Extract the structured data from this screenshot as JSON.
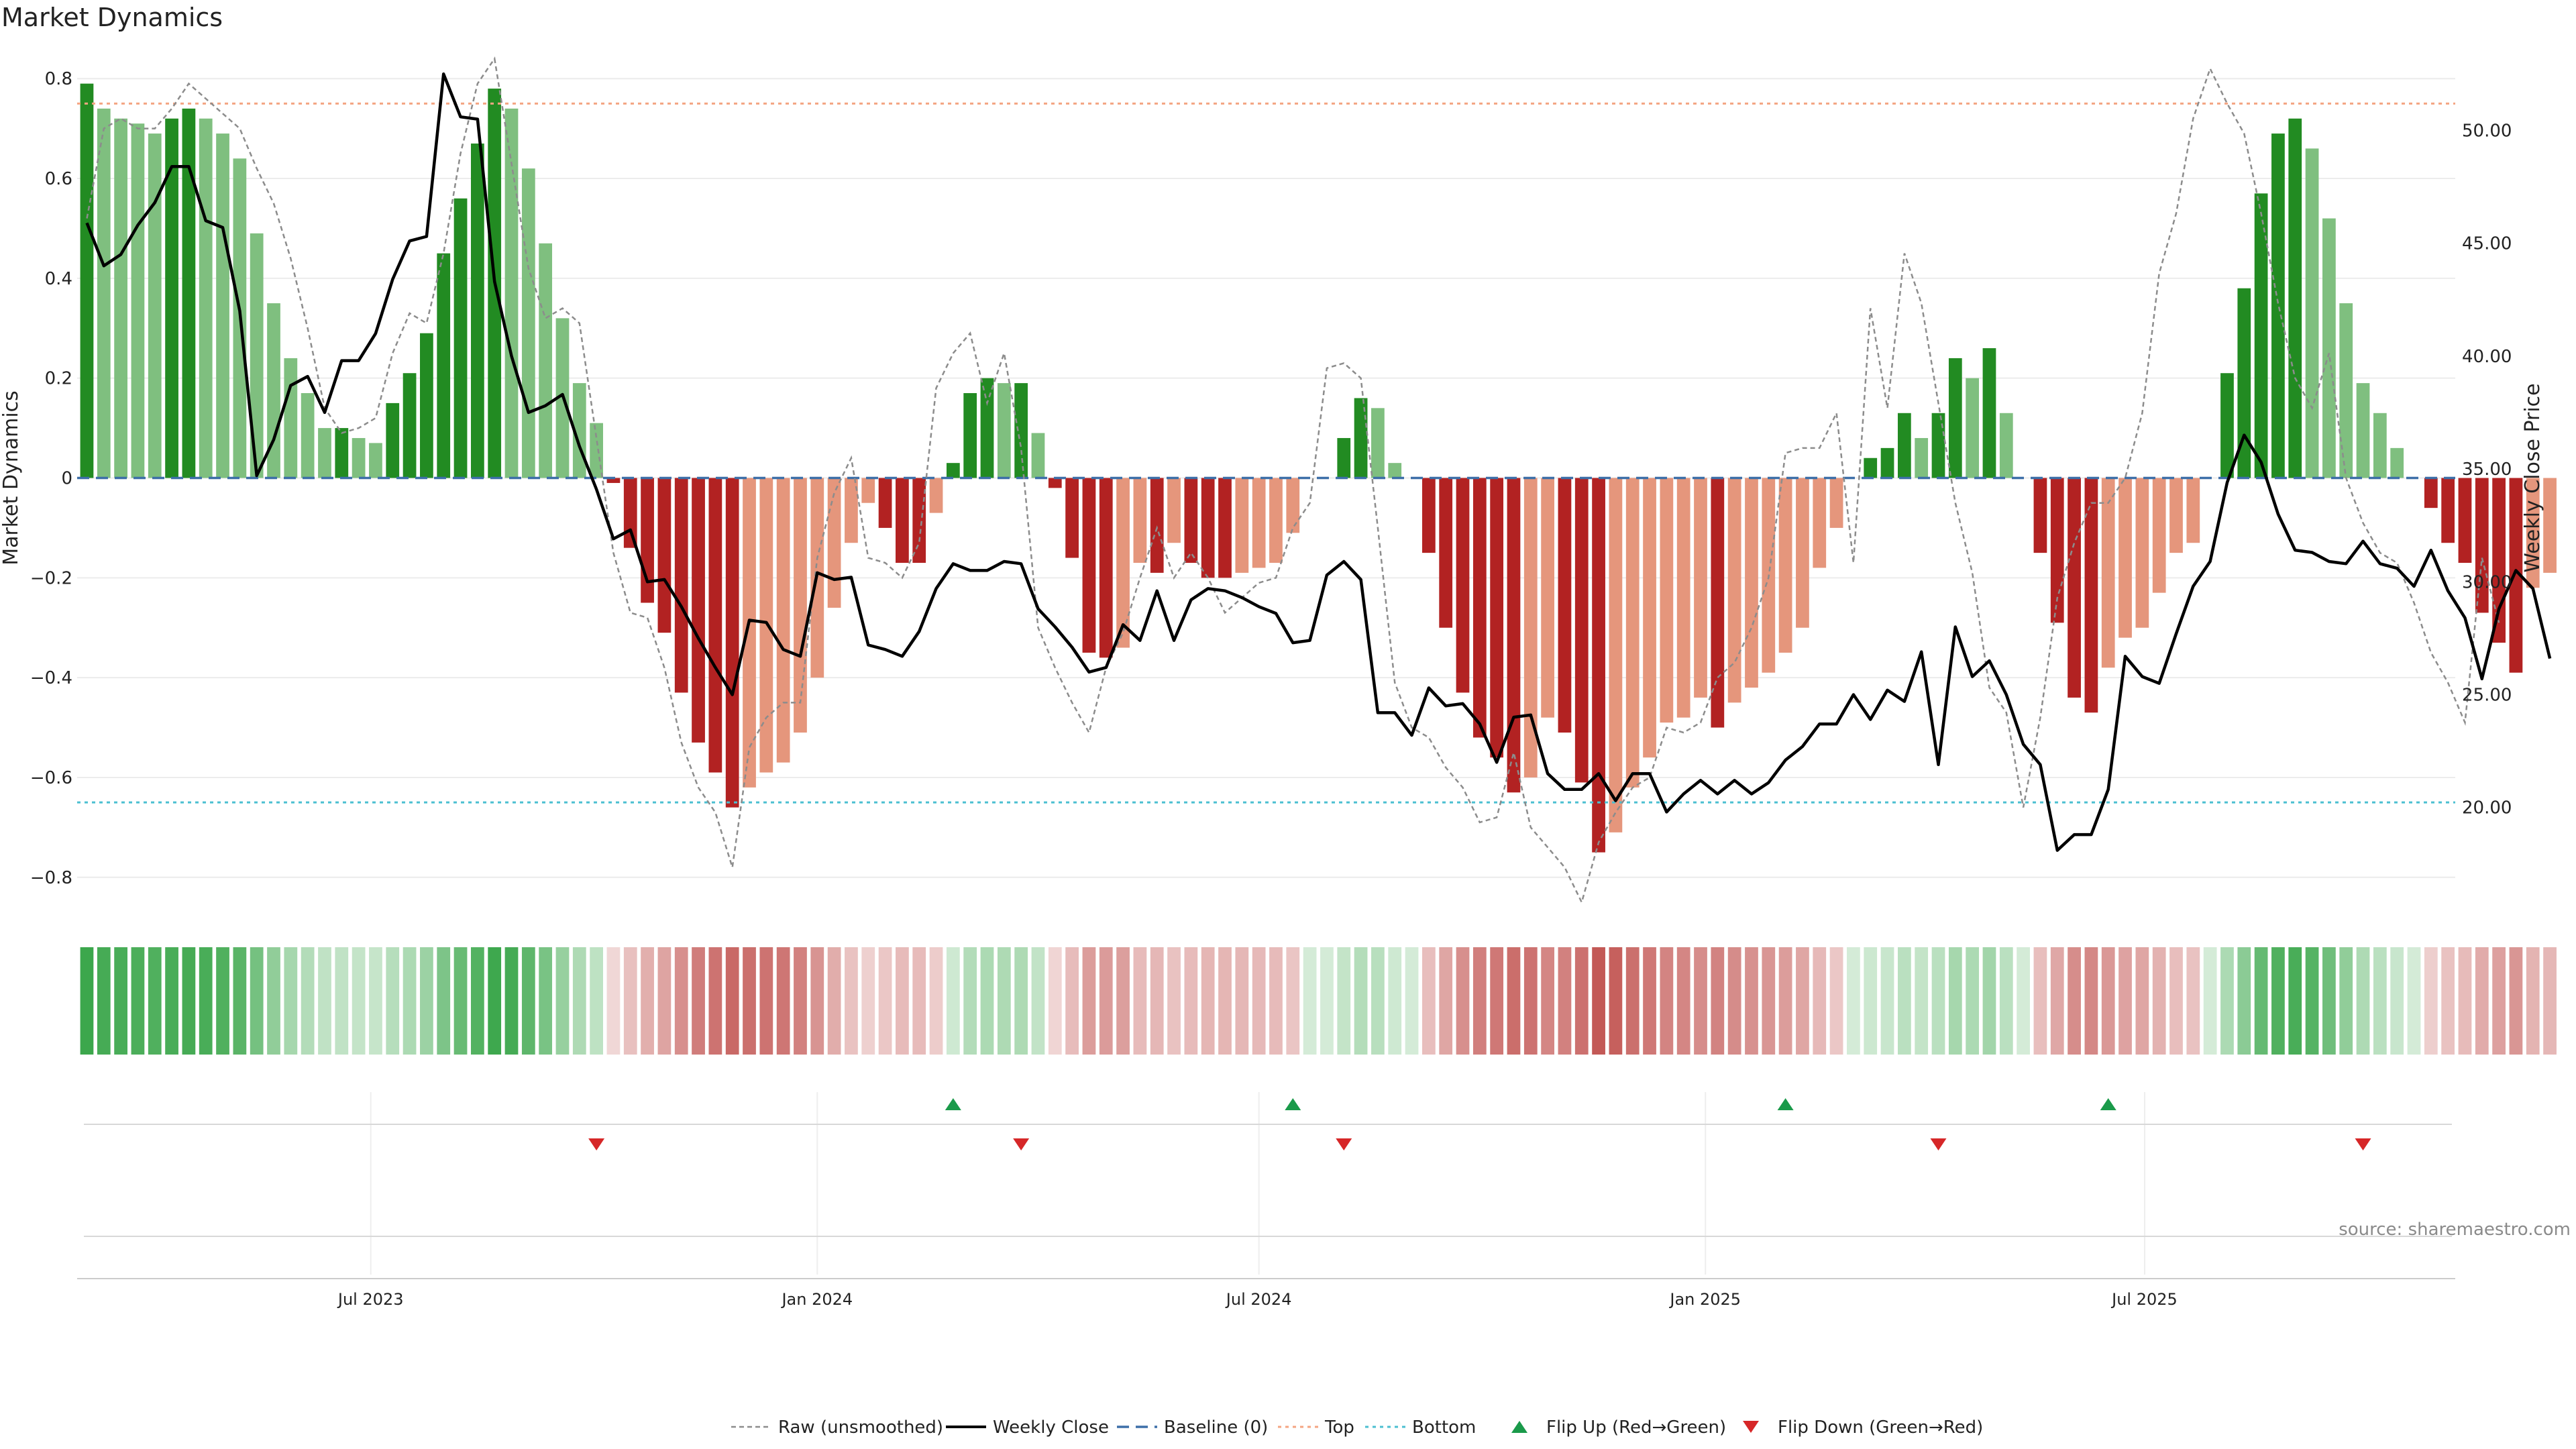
{
  "title": "Market Dynamics",
  "source": "source: sharemaestro.com",
  "colors": {
    "strong_pos": "#228b22",
    "weak_pos": "#7fbf7f",
    "strong_neg": "#b22222",
    "weak_neg": "#e5967c",
    "close": "#000000",
    "raw": "#8c8c8c",
    "baseline": "#3d6fa8",
    "top": "#f4a582",
    "bottom": "#4bbfd1",
    "flip_up": "#1a9a4a",
    "flip_down": "#d62728",
    "ribbon_pos": "#3aa64a",
    "ribbon_neg": "#c0504d"
  },
  "chart_data": {
    "type": "bar",
    "title": "Market Dynamics",
    "ylabel": "Market Dynamics",
    "y2label": "Weekly Close Price",
    "ylim": [
      -0.85,
      0.85
    ],
    "y2lim": [
      15.8,
      53.4
    ],
    "yticks": [
      -0.8,
      -0.6,
      -0.4,
      -0.2,
      0,
      0.2,
      0.4,
      0.6,
      0.8
    ],
    "ytick_labels": [
      "−0.8",
      "−0.6",
      "−0.4",
      "−0.2",
      "0",
      "0.2",
      "0.4",
      "0.6",
      "0.8"
    ],
    "y2ticks": [
      20,
      25,
      30,
      35,
      40,
      45,
      50
    ],
    "y2tick_labels": [
      "20.00",
      "25.00",
      "30.00",
      "35.00",
      "40.00",
      "45.00",
      "50.00"
    ],
    "xlim": [
      "2023-03-02",
      "2025-11-06"
    ],
    "xticks": [
      "2023-07-01",
      "2024-01-01",
      "2024-07-01",
      "2025-01-01",
      "2025-07-01"
    ],
    "xtick_labels": [
      "Jul 2023",
      "Jan 2024",
      "Jul 2024",
      "Jan 2025",
      "Jul 2025"
    ],
    "start_date": "2023-03-06",
    "top_level": 0.75,
    "bottom_level": -0.65,
    "baseline": 0,
    "grid": true,
    "legend_position": "bottom",
    "legend": [
      "Raw (unsmoothed)",
      "Weekly Close",
      "Baseline (0)",
      "Top",
      "Bottom",
      "Flip Up (Red→Green)",
      "Flip Down (Green→Red)"
    ],
    "momentum": [
      0.79,
      0.74,
      0.72,
      0.71,
      0.69,
      0.72,
      0.74,
      0.72,
      0.69,
      0.64,
      0.49,
      0.35,
      0.24,
      0.17,
      0.1,
      0.1,
      0.08,
      0.07,
      0.15,
      0.21,
      0.29,
      0.45,
      0.56,
      0.67,
      0.78,
      0.74,
      0.62,
      0.47,
      0.32,
      0.19,
      0.11,
      -0.01,
      -0.14,
      -0.25,
      -0.31,
      -0.43,
      -0.53,
      -0.59,
      -0.66,
      -0.62,
      -0.59,
      -0.57,
      -0.51,
      -0.4,
      -0.26,
      -0.13,
      -0.05,
      -0.1,
      -0.17,
      -0.17,
      -0.07,
      0.03,
      0.17,
      0.2,
      0.19,
      0.19,
      0.09,
      -0.02,
      -0.16,
      -0.35,
      -0.36,
      -0.34,
      -0.17,
      -0.19,
      -0.13,
      -0.17,
      -0.2,
      -0.2,
      -0.19,
      -0.18,
      -0.17,
      -0.11,
      0.0,
      0.0,
      0.08,
      0.16,
      0.14,
      0.03,
      0.0,
      -0.15,
      -0.3,
      -0.43,
      -0.52,
      -0.56,
      -0.63,
      -0.6,
      -0.48,
      -0.51,
      -0.61,
      -0.75,
      -0.71,
      -0.62,
      -0.56,
      -0.49,
      -0.48,
      -0.44,
      -0.5,
      -0.45,
      -0.42,
      -0.39,
      -0.35,
      -0.3,
      -0.18,
      -0.1,
      0.0,
      0.04,
      0.06,
      0.13,
      0.08,
      0.13,
      0.24,
      0.2,
      0.26,
      0.13,
      0.0,
      -0.15,
      -0.29,
      -0.44,
      -0.47,
      -0.38,
      -0.32,
      -0.3,
      -0.23,
      -0.15,
      -0.13,
      0.0,
      0.21,
      0.38,
      0.57,
      0.69,
      0.72,
      0.66,
      0.52,
      0.35,
      0.19,
      0.13,
      0.06,
      0.0,
      -0.06,
      -0.13,
      -0.17,
      -0.27,
      -0.33,
      -0.39,
      -0.22,
      -0.19
    ],
    "weekly_close": [
      45.9,
      44.0,
      44.5,
      45.8,
      46.8,
      48.4,
      48.4,
      46.0,
      45.7,
      42.0,
      34.7,
      36.3,
      38.7,
      39.1,
      37.5,
      39.8,
      39.8,
      41.0,
      43.4,
      45.1,
      45.3,
      52.5,
      50.6,
      50.5,
      43.3,
      40.0,
      37.5,
      37.8,
      38.3,
      36.0,
      34.1,
      31.9,
      32.3,
      30.0,
      30.1,
      28.9,
      27.5,
      26.2,
      25.0,
      28.3,
      28.2,
      27.0,
      26.7,
      30.4,
      30.1,
      30.2,
      27.2,
      27.0,
      26.7,
      27.8,
      29.7,
      30.8,
      30.5,
      30.5,
      30.9,
      30.8,
      28.8,
      28.0,
      27.1,
      26.0,
      26.2,
      28.1,
      27.4,
      29.6,
      27.4,
      29.2,
      29.7,
      29.6,
      29.3,
      28.9,
      28.6,
      27.3,
      27.4,
      30.3,
      30.9,
      30.1,
      24.2,
      24.2,
      23.2,
      25.3,
      24.5,
      24.6,
      23.7,
      22.0,
      24.0,
      24.1,
      21.5,
      20.8,
      20.8,
      21.5,
      20.3,
      21.5,
      21.5,
      19.8,
      20.6,
      21.2,
      20.6,
      21.2,
      20.6,
      21.1,
      22.1,
      22.7,
      23.7,
      23.7,
      25.0,
      23.9,
      25.2,
      24.7,
      26.9,
      21.9,
      28.0,
      25.8,
      26.5,
      25.0,
      22.8,
      21.9,
      18.1,
      18.8,
      18.8,
      20.8,
      26.7,
      25.8,
      25.5,
      27.7,
      29.8,
      30.9,
      34.4,
      36.5,
      35.3,
      33.0,
      31.4,
      31.3,
      30.9,
      30.8,
      31.8,
      30.8,
      30.6,
      29.8,
      31.4,
      29.6,
      28.4,
      25.7,
      28.8,
      30.5,
      29.7,
      26.6
    ],
    "raw": [
      0.52,
      0.7,
      0.72,
      0.7,
      0.7,
      0.74,
      0.79,
      0.76,
      0.73,
      0.7,
      0.62,
      0.55,
      0.44,
      0.3,
      0.14,
      0.09,
      0.1,
      0.12,
      0.25,
      0.33,
      0.31,
      0.45,
      0.65,
      0.79,
      0.84,
      0.63,
      0.42,
      0.32,
      0.34,
      0.31,
      0.08,
      -0.15,
      -0.27,
      -0.28,
      -0.38,
      -0.53,
      -0.62,
      -0.67,
      -0.78,
      -0.54,
      -0.48,
      -0.45,
      -0.45,
      -0.16,
      -0.03,
      0.04,
      -0.16,
      -0.17,
      -0.2,
      -0.13,
      0.18,
      0.25,
      0.29,
      0.15,
      0.25,
      0.06,
      -0.3,
      -0.38,
      -0.45,
      -0.51,
      -0.38,
      -0.31,
      -0.2,
      -0.1,
      -0.2,
      -0.15,
      -0.2,
      -0.27,
      -0.24,
      -0.21,
      -0.2,
      -0.1,
      -0.05,
      0.22,
      0.23,
      0.2,
      -0.1,
      -0.41,
      -0.5,
      -0.52,
      -0.58,
      -0.62,
      -0.69,
      -0.68,
      -0.55,
      -0.7,
      -0.74,
      -0.78,
      -0.85,
      -0.73,
      -0.67,
      -0.62,
      -0.6,
      -0.5,
      -0.51,
      -0.49,
      -0.4,
      -0.37,
      -0.3,
      -0.2,
      0.05,
      0.06,
      0.06,
      0.13,
      -0.17,
      0.34,
      0.14,
      0.45,
      0.35,
      0.15,
      -0.05,
      -0.19,
      -0.42,
      -0.47,
      -0.66,
      -0.48,
      -0.24,
      -0.13,
      -0.05,
      -0.05,
      0.0,
      0.13,
      0.41,
      0.53,
      0.72,
      0.82,
      0.75,
      0.69,
      0.53,
      0.35,
      0.2,
      0.14,
      0.25,
      0.0,
      -0.09,
      -0.15,
      -0.17,
      -0.25,
      -0.35,
      -0.41,
      -0.49,
      -0.16,
      -0.29
    ],
    "flip_up": [
      "2024-02-26",
      "2024-07-15",
      "2025-02-03",
      "2025-06-16"
    ],
    "flip_down": [
      "2023-10-02",
      "2024-03-25",
      "2024-08-05",
      "2025-04-07",
      "2025-09-29"
    ]
  }
}
